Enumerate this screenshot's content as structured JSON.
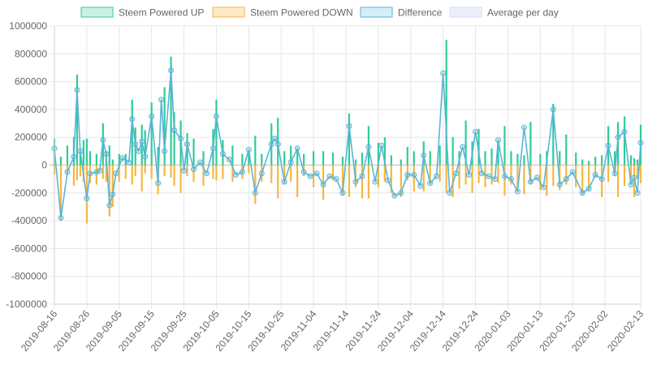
{
  "chart_data": {
    "type": "bar",
    "title": "",
    "xlabel": "",
    "ylabel": "",
    "ylim": [
      -1000000,
      1000000
    ],
    "y_ticks": [
      "1000000",
      "800000",
      "600000",
      "400000",
      "200000",
      "0",
      "-200000",
      "-400000",
      "-600000",
      "-800000",
      "-1000000"
    ],
    "x_tick_labels": [
      "2019-08-16",
      "2019-08-26",
      "2019-09-05",
      "2019-09-15",
      "2019-09-25",
      "2019-10-05",
      "2019-10-15",
      "2019-10-25",
      "2019-11-04",
      "2019-11-14",
      "2019-11-24",
      "2019-12-04",
      "2019-12-14",
      "2019-12-24",
      "2020-01-03",
      "2020-01-13",
      "2020-01-23",
      "2020-02-02",
      "2020-02-13"
    ],
    "x_range": [
      "2019-08-16",
      "2020-02-13"
    ],
    "grid": true,
    "legend_position": "top",
    "colors": {
      "up": "#2ecc9a",
      "down": "#f5b742",
      "difference": "#5ab4d6",
      "average": "#e3e6f7"
    },
    "series": [
      {
        "name": "Steem Powered UP",
        "kind": "bar",
        "color": "#2ecc9a"
      },
      {
        "name": "Steem Powered DOWN",
        "kind": "bar",
        "color": "#f5b742"
      },
      {
        "name": "Difference",
        "kind": "line",
        "color": "#5ab4d6"
      },
      {
        "name": "Average per day",
        "kind": "line",
        "color": "#e3e6f7"
      }
    ],
    "points": [
      [
        "2019-08-16",
        190000,
        -70000
      ],
      [
        "2019-08-18",
        60000,
        -400000
      ],
      [
        "2019-08-20",
        140000,
        -60000
      ],
      [
        "2019-08-22",
        200000,
        -150000
      ],
      [
        "2019-08-23",
        650000,
        -110000
      ],
      [
        "2019-08-24",
        100000,
        -80000
      ],
      [
        "2019-08-25",
        180000,
        -120000
      ],
      [
        "2019-08-26",
        190000,
        -420000
      ],
      [
        "2019-08-27",
        100000,
        -130000
      ],
      [
        "2019-08-29",
        80000,
        -140000
      ],
      [
        "2019-08-31",
        300000,
        -100000
      ],
      [
        "2019-09-01",
        100000,
        -120000
      ],
      [
        "2019-09-02",
        140000,
        -370000
      ],
      [
        "2019-09-03",
        40000,
        -300000
      ],
      [
        "2019-09-05",
        80000,
        -120000
      ],
      [
        "2019-09-07",
        80000,
        -100000
      ],
      [
        "2019-09-09",
        470000,
        -140000
      ],
      [
        "2019-09-10",
        270000,
        -80000
      ],
      [
        "2019-09-12",
        290000,
        -190000
      ],
      [
        "2019-09-13",
        250000,
        -60000
      ],
      [
        "2019-09-15",
        450000,
        -100000
      ],
      [
        "2019-09-17",
        130000,
        -210000
      ],
      [
        "2019-09-19",
        560000,
        -80000
      ],
      [
        "2019-09-21",
        780000,
        -90000
      ],
      [
        "2019-09-22",
        380000,
        -150000
      ],
      [
        "2019-09-24",
        320000,
        -200000
      ],
      [
        "2019-09-26",
        230000,
        -80000
      ],
      [
        "2019-09-28",
        190000,
        -120000
      ],
      [
        "2019-10-01",
        100000,
        -150000
      ],
      [
        "2019-10-04",
        260000,
        -100000
      ],
      [
        "2019-10-05",
        470000,
        -110000
      ],
      [
        "2019-10-07",
        180000,
        -100000
      ],
      [
        "2019-10-10",
        140000,
        -120000
      ],
      [
        "2019-10-13",
        80000,
        -100000
      ],
      [
        "2019-10-15",
        100000,
        -60000
      ],
      [
        "2019-10-17",
        210000,
        -280000
      ],
      [
        "2019-10-19",
        80000,
        -120000
      ],
      [
        "2019-10-22",
        300000,
        -130000
      ],
      [
        "2019-10-24",
        340000,
        -240000
      ],
      [
        "2019-10-26",
        100000,
        -140000
      ],
      [
        "2019-10-28",
        140000,
        -120000
      ],
      [
        "2019-10-30",
        110000,
        -230000
      ],
      [
        "2019-11-01",
        80000,
        -80000
      ],
      [
        "2019-11-04",
        100000,
        -160000
      ],
      [
        "2019-11-07",
        100000,
        -250000
      ],
      [
        "2019-11-10",
        90000,
        -110000
      ],
      [
        "2019-11-13",
        60000,
        -220000
      ],
      [
        "2019-11-15",
        370000,
        -230000
      ],
      [
        "2019-11-17",
        40000,
        -160000
      ],
      [
        "2019-11-19",
        90000,
        -240000
      ],
      [
        "2019-11-21",
        280000,
        -240000
      ],
      [
        "2019-11-24",
        160000,
        -160000
      ],
      [
        "2019-11-26",
        200000,
        -120000
      ],
      [
        "2019-11-28",
        70000,
        -200000
      ],
      [
        "2019-12-01",
        40000,
        -230000
      ],
      [
        "2019-12-03",
        130000,
        -110000
      ],
      [
        "2019-12-05",
        100000,
        -190000
      ],
      [
        "2019-12-08",
        170000,
        -190000
      ],
      [
        "2019-12-10",
        100000,
        -140000
      ],
      [
        "2019-12-13",
        140000,
        -120000
      ],
      [
        "2019-12-15",
        900000,
        -200000
      ],
      [
        "2019-12-17",
        200000,
        -230000
      ],
      [
        "2019-12-19",
        100000,
        -170000
      ],
      [
        "2019-12-21",
        320000,
        -140000
      ],
      [
        "2019-12-23",
        170000,
        -200000
      ],
      [
        "2019-12-25",
        260000,
        -130000
      ],
      [
        "2019-12-27",
        100000,
        -160000
      ],
      [
        "2019-12-29",
        120000,
        -140000
      ],
      [
        "2019-12-31",
        160000,
        -130000
      ],
      [
        "2020-01-02",
        280000,
        -220000
      ],
      [
        "2020-01-04",
        100000,
        -140000
      ],
      [
        "2020-01-06",
        80000,
        -170000
      ],
      [
        "2020-01-08",
        70000,
        -210000
      ],
      [
        "2020-01-10",
        310000,
        -140000
      ],
      [
        "2020-01-13",
        80000,
        -180000
      ],
      [
        "2020-01-15",
        100000,
        -220000
      ],
      [
        "2020-01-17",
        440000,
        -150000
      ],
      [
        "2020-01-19",
        100000,
        -180000
      ],
      [
        "2020-01-21",
        220000,
        -140000
      ],
      [
        "2020-01-24",
        90000,
        -160000
      ],
      [
        "2020-01-26",
        40000,
        -220000
      ],
      [
        "2020-01-28",
        30000,
        -180000
      ],
      [
        "2020-01-30",
        60000,
        -90000
      ],
      [
        "2020-02-01",
        70000,
        -230000
      ],
      [
        "2020-02-03",
        280000,
        -120000
      ],
      [
        "2020-02-05",
        100000,
        -80000
      ],
      [
        "2020-02-06",
        310000,
        -230000
      ],
      [
        "2020-02-08",
        350000,
        -150000
      ],
      [
        "2020-02-10",
        70000,
        -130000
      ],
      [
        "2020-02-11",
        50000,
        -230000
      ],
      [
        "2020-02-12",
        40000,
        -100000
      ],
      [
        "2020-02-13",
        290000,
        -130000
      ]
    ],
    "difference_points": [
      [
        "2019-08-16",
        120000
      ],
      [
        "2019-08-18",
        -380000
      ],
      [
        "2019-08-20",
        -50000
      ],
      [
        "2019-08-22",
        60000
      ],
      [
        "2019-08-23",
        540000
      ],
      [
        "2019-08-24",
        100000
      ],
      [
        "2019-08-26",
        -240000
      ],
      [
        "2019-08-27",
        -60000
      ],
      [
        "2019-08-29",
        -50000
      ],
      [
        "2019-08-30",
        -40000
      ],
      [
        "2019-08-31",
        180000
      ],
      [
        "2019-09-01",
        80000
      ],
      [
        "2019-09-02",
        -290000
      ],
      [
        "2019-09-03",
        -210000
      ],
      [
        "2019-09-04",
        -60000
      ],
      [
        "2019-09-06",
        50000
      ],
      [
        "2019-09-08",
        20000
      ],
      [
        "2019-09-09",
        330000
      ],
      [
        "2019-09-10",
        150000
      ],
      [
        "2019-09-11",
        100000
      ],
      [
        "2019-09-12",
        170000
      ],
      [
        "2019-09-13",
        60000
      ],
      [
        "2019-09-15",
        350000
      ],
      [
        "2019-09-17",
        -130000
      ],
      [
        "2019-09-18",
        470000
      ],
      [
        "2019-09-19",
        100000
      ],
      [
        "2019-09-21",
        680000
      ],
      [
        "2019-09-22",
        250000
      ],
      [
        "2019-09-24",
        190000
      ],
      [
        "2019-09-25",
        -40000
      ],
      [
        "2019-09-26",
        150000
      ],
      [
        "2019-09-28",
        -30000
      ],
      [
        "2019-09-30",
        20000
      ],
      [
        "2019-10-02",
        -60000
      ],
      [
        "2019-10-04",
        120000
      ],
      [
        "2019-10-05",
        350000
      ],
      [
        "2019-10-07",
        80000
      ],
      [
        "2019-10-09",
        40000
      ],
      [
        "2019-10-11",
        -70000
      ],
      [
        "2019-10-13",
        -50000
      ],
      [
        "2019-10-15",
        110000
      ],
      [
        "2019-10-17",
        -200000
      ],
      [
        "2019-10-19",
        -60000
      ],
      [
        "2019-10-22",
        150000
      ],
      [
        "2019-10-23",
        190000
      ],
      [
        "2019-10-24",
        150000
      ],
      [
        "2019-10-26",
        -120000
      ],
      [
        "2019-10-28",
        20000
      ],
      [
        "2019-10-30",
        120000
      ],
      [
        "2019-11-01",
        -50000
      ],
      [
        "2019-11-03",
        -80000
      ],
      [
        "2019-11-05",
        -60000
      ],
      [
        "2019-11-07",
        -140000
      ],
      [
        "2019-11-09",
        -80000
      ],
      [
        "2019-11-11",
        -100000
      ],
      [
        "2019-11-13",
        -200000
      ],
      [
        "2019-11-15",
        280000
      ],
      [
        "2019-11-17",
        -120000
      ],
      [
        "2019-11-19",
        -80000
      ],
      [
        "2019-11-21",
        130000
      ],
      [
        "2019-11-23",
        -120000
      ],
      [
        "2019-11-25",
        140000
      ],
      [
        "2019-11-27",
        -110000
      ],
      [
        "2019-11-29",
        -220000
      ],
      [
        "2019-12-01",
        -200000
      ],
      [
        "2019-12-03",
        -70000
      ],
      [
        "2019-12-05",
        -70000
      ],
      [
        "2019-12-07",
        -150000
      ],
      [
        "2019-12-08",
        70000
      ],
      [
        "2019-12-10",
        -130000
      ],
      [
        "2019-12-12",
        -80000
      ],
      [
        "2019-12-14",
        660000
      ],
      [
        "2019-12-16",
        -200000
      ],
      [
        "2019-12-18",
        -60000
      ],
      [
        "2019-12-20",
        130000
      ],
      [
        "2019-12-22",
        -70000
      ],
      [
        "2019-12-24",
        240000
      ],
      [
        "2019-12-26",
        -60000
      ],
      [
        "2019-12-28",
        -80000
      ],
      [
        "2019-12-30",
        -100000
      ],
      [
        "2019-12-31",
        180000
      ],
      [
        "2020-01-02",
        -80000
      ],
      [
        "2020-01-04",
        -100000
      ],
      [
        "2020-01-06",
        -190000
      ],
      [
        "2020-01-08",
        270000
      ],
      [
        "2020-01-10",
        -120000
      ],
      [
        "2020-01-12",
        -90000
      ],
      [
        "2020-01-14",
        -160000
      ],
      [
        "2020-01-17",
        400000
      ],
      [
        "2020-01-19",
        -140000
      ],
      [
        "2020-01-21",
        -100000
      ],
      [
        "2020-01-23",
        -50000
      ],
      [
        "2020-01-26",
        -200000
      ],
      [
        "2020-01-28",
        -170000
      ],
      [
        "2020-01-30",
        -70000
      ],
      [
        "2020-02-01",
        -100000
      ],
      [
        "2020-02-03",
        140000
      ],
      [
        "2020-02-05",
        -60000
      ],
      [
        "2020-02-06",
        200000
      ],
      [
        "2020-02-08",
        240000
      ],
      [
        "2020-02-10",
        -140000
      ],
      [
        "2020-02-11",
        -90000
      ],
      [
        "2020-02-12",
        -200000
      ],
      [
        "2020-02-13",
        160000
      ]
    ]
  }
}
